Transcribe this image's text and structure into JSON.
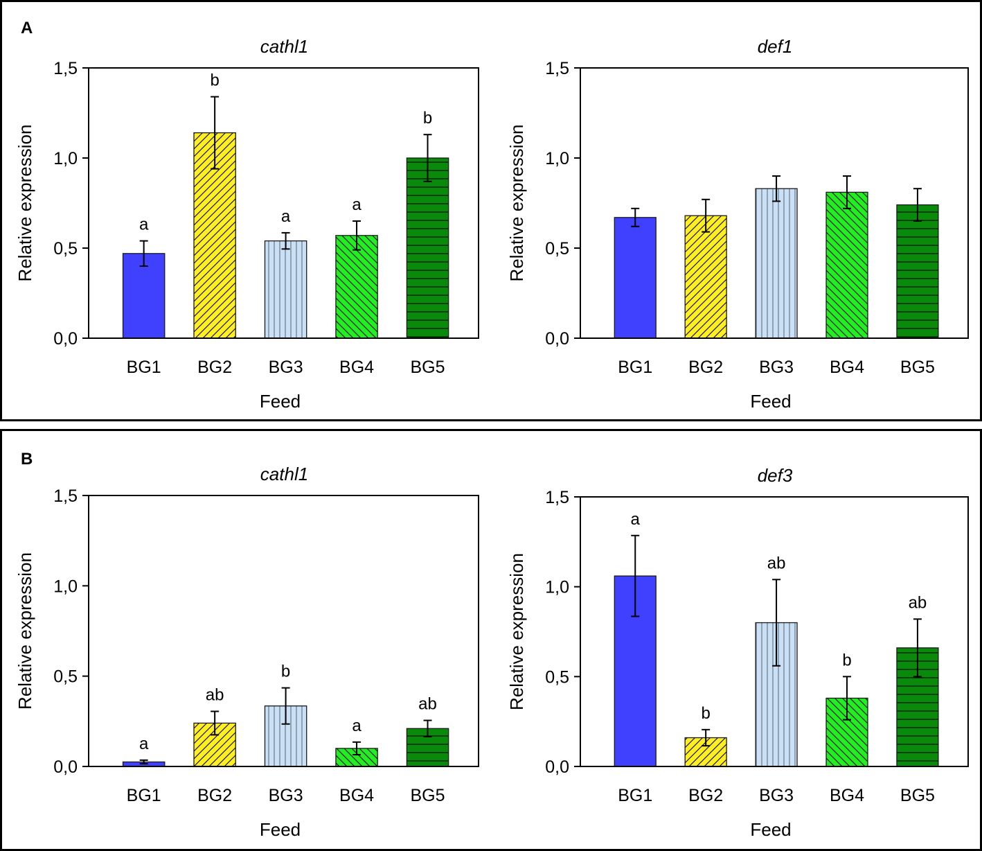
{
  "chart_data": [
    {
      "type": "bar",
      "panel": "A",
      "title": "cathl1",
      "xlabel": "Feed",
      "ylabel": "Relative expression",
      "ylim": [
        0,
        1.5
      ],
      "yticks": [
        "0,0",
        "0,5",
        "1,0",
        "1,5"
      ],
      "categories": [
        "BG1",
        "BG2",
        "BG3",
        "BG4",
        "BG5"
      ],
      "values": [
        0.47,
        1.14,
        0.54,
        0.57,
        1.0
      ],
      "errors": [
        0.07,
        0.2,
        0.045,
        0.08,
        0.13
      ],
      "letters": [
        "a",
        "b",
        "a",
        "a",
        "b"
      ]
    },
    {
      "type": "bar",
      "panel": "",
      "title": "def1",
      "xlabel": "Feed",
      "ylabel": "Relative expression",
      "ylim": [
        0,
        1.5
      ],
      "yticks": [
        "0,0",
        "0,5",
        "1,0",
        "1,5"
      ],
      "categories": [
        "BG1",
        "BG2",
        "BG3",
        "BG4",
        "BG5"
      ],
      "values": [
        0.67,
        0.68,
        0.83,
        0.81,
        0.74
      ],
      "errors": [
        0.05,
        0.09,
        0.07,
        0.09,
        0.09
      ],
      "letters": [
        "",
        "",
        "",
        "",
        ""
      ]
    },
    {
      "type": "bar",
      "panel": "B",
      "title": "cathl1",
      "xlabel": "Feed",
      "ylabel": "Relative expression",
      "ylim": [
        0,
        1.5
      ],
      "yticks": [
        "0,0",
        "0,5",
        "1,0",
        "1,5"
      ],
      "categories": [
        "BG1",
        "BG2",
        "BG3",
        "BG4",
        "BG5"
      ],
      "values": [
        0.025,
        0.24,
        0.335,
        0.1,
        0.21
      ],
      "errors": [
        0.01,
        0.065,
        0.1,
        0.035,
        0.045
      ],
      "letters": [
        "a",
        "ab",
        "b",
        "a",
        "ab"
      ]
    },
    {
      "type": "bar",
      "panel": "",
      "title": "def3",
      "xlabel": "Feed",
      "ylabel": "Relative expression",
      "ylim": [
        0,
        1.5
      ],
      "yticks": [
        "0,0",
        "0,5",
        "1,0",
        "1,5"
      ],
      "categories": [
        "BG1",
        "BG2",
        "BG3",
        "BG4",
        "BG5"
      ],
      "values": [
        1.06,
        0.16,
        0.8,
        0.38,
        0.66
      ],
      "errors": [
        0.225,
        0.045,
        0.24,
        0.12,
        0.16
      ],
      "letters": [
        "a",
        "b",
        "ab",
        "b",
        "ab"
      ]
    }
  ],
  "bar_styles": [
    {
      "fill": "#4040ff",
      "pattern": "solid"
    },
    {
      "fill": "#ffee22",
      "pattern": "diag-up"
    },
    {
      "fill": "#c8e0f8",
      "pattern": "vertical"
    },
    {
      "fill": "#22ee22",
      "pattern": "diag-down"
    },
    {
      "fill": "#0a8a0a",
      "pattern": "horizontal"
    }
  ]
}
